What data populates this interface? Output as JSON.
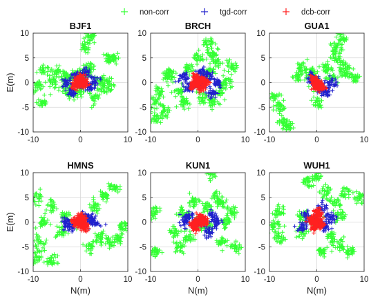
{
  "legend": {
    "entries": [
      {
        "label": "non-corr",
        "color": "#33ff33"
      },
      {
        "label": "tgd-corr",
        "color": "#2020cc"
      },
      {
        "label": "dcb-corr",
        "color": "#ff2020"
      }
    ]
  },
  "chart_data": [
    {
      "type": "scatter",
      "title": "BJF1",
      "xlabel": "",
      "ylabel": "E(m)",
      "xlim": [
        -10,
        10
      ],
      "ylim": [
        -10,
        10
      ],
      "xticks": [
        -10,
        0,
        10
      ],
      "yticks": [
        10,
        5,
        0,
        -5,
        -10
      ],
      "grid": true,
      "series": [
        {
          "name": "non-corr",
          "color": "#33ff33",
          "values": [
            [
              0,
              0
            ],
            [
              -1,
              1.5
            ],
            [
              1,
              2
            ],
            [
              -3,
              1
            ],
            [
              4,
              0.5
            ],
            [
              6,
              5
            ],
            [
              7,
              5
            ],
            [
              -5,
              2
            ],
            [
              -8,
              2.5
            ],
            [
              -2,
              -2
            ],
            [
              3,
              -3
            ],
            [
              6,
              -0.5
            ],
            [
              -9,
              -1
            ],
            [
              -8,
              -4
            ],
            [
              1,
              7
            ],
            [
              2,
              9
            ],
            [
              -3,
              -1
            ],
            [
              0,
              -2
            ],
            [
              5,
              -1
            ],
            [
              2,
              3
            ],
            [
              -6,
              0
            ]
          ]
        },
        {
          "name": "tgd-corr",
          "color": "#2020cc",
          "values": [
            [
              0,
              0
            ],
            [
              -1,
              1
            ],
            [
              2,
              -1
            ],
            [
              -3,
              0
            ],
            [
              1,
              2
            ],
            [
              3,
              0.5
            ],
            [
              -2,
              -2
            ]
          ]
        },
        {
          "name": "dcb-corr",
          "color": "#ff2020",
          "values": [
            [
              0,
              0
            ],
            [
              -0.5,
              0.5
            ],
            [
              0.5,
              -0.5
            ],
            [
              1,
              0
            ],
            [
              -1,
              -0.5
            ],
            [
              0,
              1
            ]
          ]
        }
      ]
    },
    {
      "type": "scatter",
      "title": "BRCH",
      "xlabel": "",
      "ylabel": "",
      "xlim": [
        -10,
        10
      ],
      "ylim": [
        -10,
        10
      ],
      "xticks": [
        -10,
        0,
        10
      ],
      "yticks": [
        10,
        5,
        0,
        -5,
        -10
      ],
      "grid": true,
      "series": [
        {
          "name": "non-corr",
          "color": "#33ff33",
          "values": [
            [
              0,
              0
            ],
            [
              -6,
              1
            ],
            [
              -8,
              -2
            ],
            [
              -9,
              -4
            ],
            [
              -7,
              -6
            ],
            [
              4,
              4
            ],
            [
              2,
              8
            ],
            [
              6,
              0
            ],
            [
              3,
              -4
            ],
            [
              -2,
              3
            ],
            [
              5,
              -2
            ],
            [
              -4,
              -2
            ],
            [
              0,
              5
            ],
            [
              -6,
              2
            ],
            [
              7,
              3
            ],
            [
              1,
              -3
            ],
            [
              -9,
              -7
            ],
            [
              3,
              6
            ],
            [
              -3,
              -4
            ],
            [
              2,
              2
            ]
          ]
        },
        {
          "name": "tgd-corr",
          "color": "#2020cc",
          "values": [
            [
              0,
              0
            ],
            [
              2,
              1
            ],
            [
              -2,
              -1
            ],
            [
              3,
              -2
            ],
            [
              -3,
              1
            ],
            [
              1,
              2
            ],
            [
              4,
              0
            ]
          ]
        },
        {
          "name": "dcb-corr",
          "color": "#ff2020",
          "values": [
            [
              0,
              0
            ],
            [
              1,
              0.5
            ],
            [
              -1,
              -0.5
            ],
            [
              0.5,
              -1
            ],
            [
              -0.5,
              1
            ],
            [
              1.5,
              0
            ]
          ]
        }
      ]
    },
    {
      "type": "scatter",
      "title": "GUA1",
      "xlabel": "",
      "ylabel": "",
      "xlim": [
        -10,
        10
      ],
      "ylim": [
        -10,
        10
      ],
      "xticks": [
        -10,
        0,
        10
      ],
      "yticks": [
        10,
        5,
        0,
        -5,
        -10
      ],
      "grid": true,
      "series": [
        {
          "name": "non-corr",
          "color": "#33ff33",
          "values": [
            [
              0,
              0
            ],
            [
              -3,
              3
            ],
            [
              -1,
              2
            ],
            [
              2,
              3
            ],
            [
              4,
              7
            ],
            [
              5,
              9
            ],
            [
              6,
              3
            ],
            [
              8,
              1
            ],
            [
              -9,
              -3
            ],
            [
              -8,
              -5
            ],
            [
              -7,
              -8
            ],
            [
              -6,
              -9
            ],
            [
              0,
              -4
            ],
            [
              -4,
              1
            ],
            [
              3,
              1
            ],
            [
              6,
              2
            ],
            [
              4,
              5
            ]
          ]
        },
        {
          "name": "tgd-corr",
          "color": "#2020cc",
          "values": [
            [
              0,
              0
            ],
            [
              1,
              -1
            ],
            [
              -1,
              1
            ],
            [
              2,
              -2
            ],
            [
              3,
              0
            ]
          ]
        },
        {
          "name": "dcb-corr",
          "color": "#ff2020",
          "values": [
            [
              0,
              0
            ],
            [
              0.5,
              -0.5
            ],
            [
              1,
              -1
            ],
            [
              -0.5,
              0.5
            ],
            [
              0,
              -1
            ]
          ]
        }
      ]
    },
    {
      "type": "scatter",
      "title": "HMNS",
      "xlabel": "N(m)",
      "ylabel": "E(m)",
      "xlim": [
        -10,
        10
      ],
      "ylim": [
        -10,
        10
      ],
      "xticks": [
        -10,
        0,
        10
      ],
      "yticks": [
        10,
        5,
        0,
        -5,
        -10
      ],
      "grid": true,
      "series": [
        {
          "name": "non-corr",
          "color": "#33ff33",
          "values": [
            [
              0,
              0
            ],
            [
              -9,
              5
            ],
            [
              -6,
              3
            ],
            [
              -3,
              1
            ],
            [
              3,
              3
            ],
            [
              5,
              5
            ],
            [
              7,
              7
            ],
            [
              4,
              -3
            ],
            [
              6,
              -4
            ],
            [
              8,
              -3
            ],
            [
              -9,
              -4
            ],
            [
              -9,
              -7
            ],
            [
              -6,
              -8
            ],
            [
              -4,
              -2
            ],
            [
              2,
              -5
            ],
            [
              -8,
              0
            ],
            [
              9,
              -1
            ]
          ]
        },
        {
          "name": "tgd-corr",
          "color": "#2020cc",
          "values": [
            [
              0,
              0
            ],
            [
              -3,
              0
            ],
            [
              2,
              0.5
            ],
            [
              3,
              0
            ],
            [
              -2,
              -1
            ],
            [
              1,
              1
            ]
          ]
        },
        {
          "name": "dcb-corr",
          "color": "#ff2020",
          "values": [
            [
              0,
              0
            ],
            [
              0.5,
              0.5
            ],
            [
              -0.5,
              -0.5
            ],
            [
              1,
              -1
            ],
            [
              -1,
              0
            ],
            [
              0,
              1
            ]
          ]
        }
      ]
    },
    {
      "type": "scatter",
      "title": "KUN1",
      "xlabel": "N(m)",
      "ylabel": "",
      "xlim": [
        -10,
        10
      ],
      "ylim": [
        -10,
        10
      ],
      "xticks": [
        -10,
        0,
        10
      ],
      "yticks": [
        10,
        5,
        0,
        -5,
        -10
      ],
      "grid": true,
      "series": [
        {
          "name": "non-corr",
          "color": "#33ff33",
          "values": [
            [
              0,
              0
            ],
            [
              -3,
              2
            ],
            [
              -5,
              -2
            ],
            [
              -9,
              2
            ],
            [
              2,
              3
            ],
            [
              3,
              10
            ],
            [
              4,
              5
            ],
            [
              5,
              4
            ],
            [
              -2,
              -3
            ],
            [
              5,
              -4
            ],
            [
              8,
              -5
            ],
            [
              7,
              2
            ],
            [
              -9,
              -6
            ],
            [
              -4,
              -5
            ],
            [
              2,
              -1
            ],
            [
              -1,
              4
            ],
            [
              6,
              0
            ]
          ]
        },
        {
          "name": "tgd-corr",
          "color": "#2020cc",
          "values": [
            [
              0,
              0
            ],
            [
              -3,
              0
            ],
            [
              3,
              1
            ],
            [
              2,
              -2
            ],
            [
              -2,
              1
            ],
            [
              4,
              0
            ]
          ]
        },
        {
          "name": "dcb-corr",
          "color": "#ff2020",
          "values": [
            [
              0,
              0
            ],
            [
              1,
              0.5
            ],
            [
              -1,
              -0.5
            ],
            [
              0.5,
              1
            ],
            [
              -0.5,
              -1
            ],
            [
              1.5,
              0
            ]
          ]
        }
      ]
    },
    {
      "type": "scatter",
      "title": "WUH1",
      "xlabel": "N(m)",
      "ylabel": "",
      "xlim": [
        -10,
        10
      ],
      "ylim": [
        -10,
        10
      ],
      "xticks": [
        -10,
        0,
        10
      ],
      "yticks": [
        10,
        5,
        0,
        -5,
        -10
      ],
      "grid": true,
      "series": [
        {
          "name": "non-corr",
          "color": "#33ff33",
          "values": [
            [
              0,
              0
            ],
            [
              -2,
              8
            ],
            [
              0,
              9
            ],
            [
              2,
              6
            ],
            [
              4,
              4
            ],
            [
              6,
              6
            ],
            [
              9,
              5
            ],
            [
              -3,
              1
            ],
            [
              -8,
              2
            ],
            [
              -9,
              -1
            ],
            [
              -8,
              -3
            ],
            [
              3,
              -3
            ],
            [
              5,
              -5
            ],
            [
              7,
              -6
            ],
            [
              -3,
              -2
            ],
            [
              1,
              -6
            ],
            [
              5,
              1
            ]
          ]
        },
        {
          "name": "tgd-corr",
          "color": "#2020cc",
          "values": [
            [
              0,
              0
            ],
            [
              -2,
              1
            ],
            [
              2,
              -1
            ],
            [
              3,
              1
            ],
            [
              -3,
              -1
            ],
            [
              1,
              3
            ]
          ]
        },
        {
          "name": "dcb-corr",
          "color": "#ff2020",
          "values": [
            [
              0,
              0
            ],
            [
              0.5,
              1
            ],
            [
              -0.5,
              -1
            ],
            [
              1,
              -0.5
            ],
            [
              -1,
              0.5
            ],
            [
              0,
              2
            ]
          ]
        }
      ]
    }
  ]
}
